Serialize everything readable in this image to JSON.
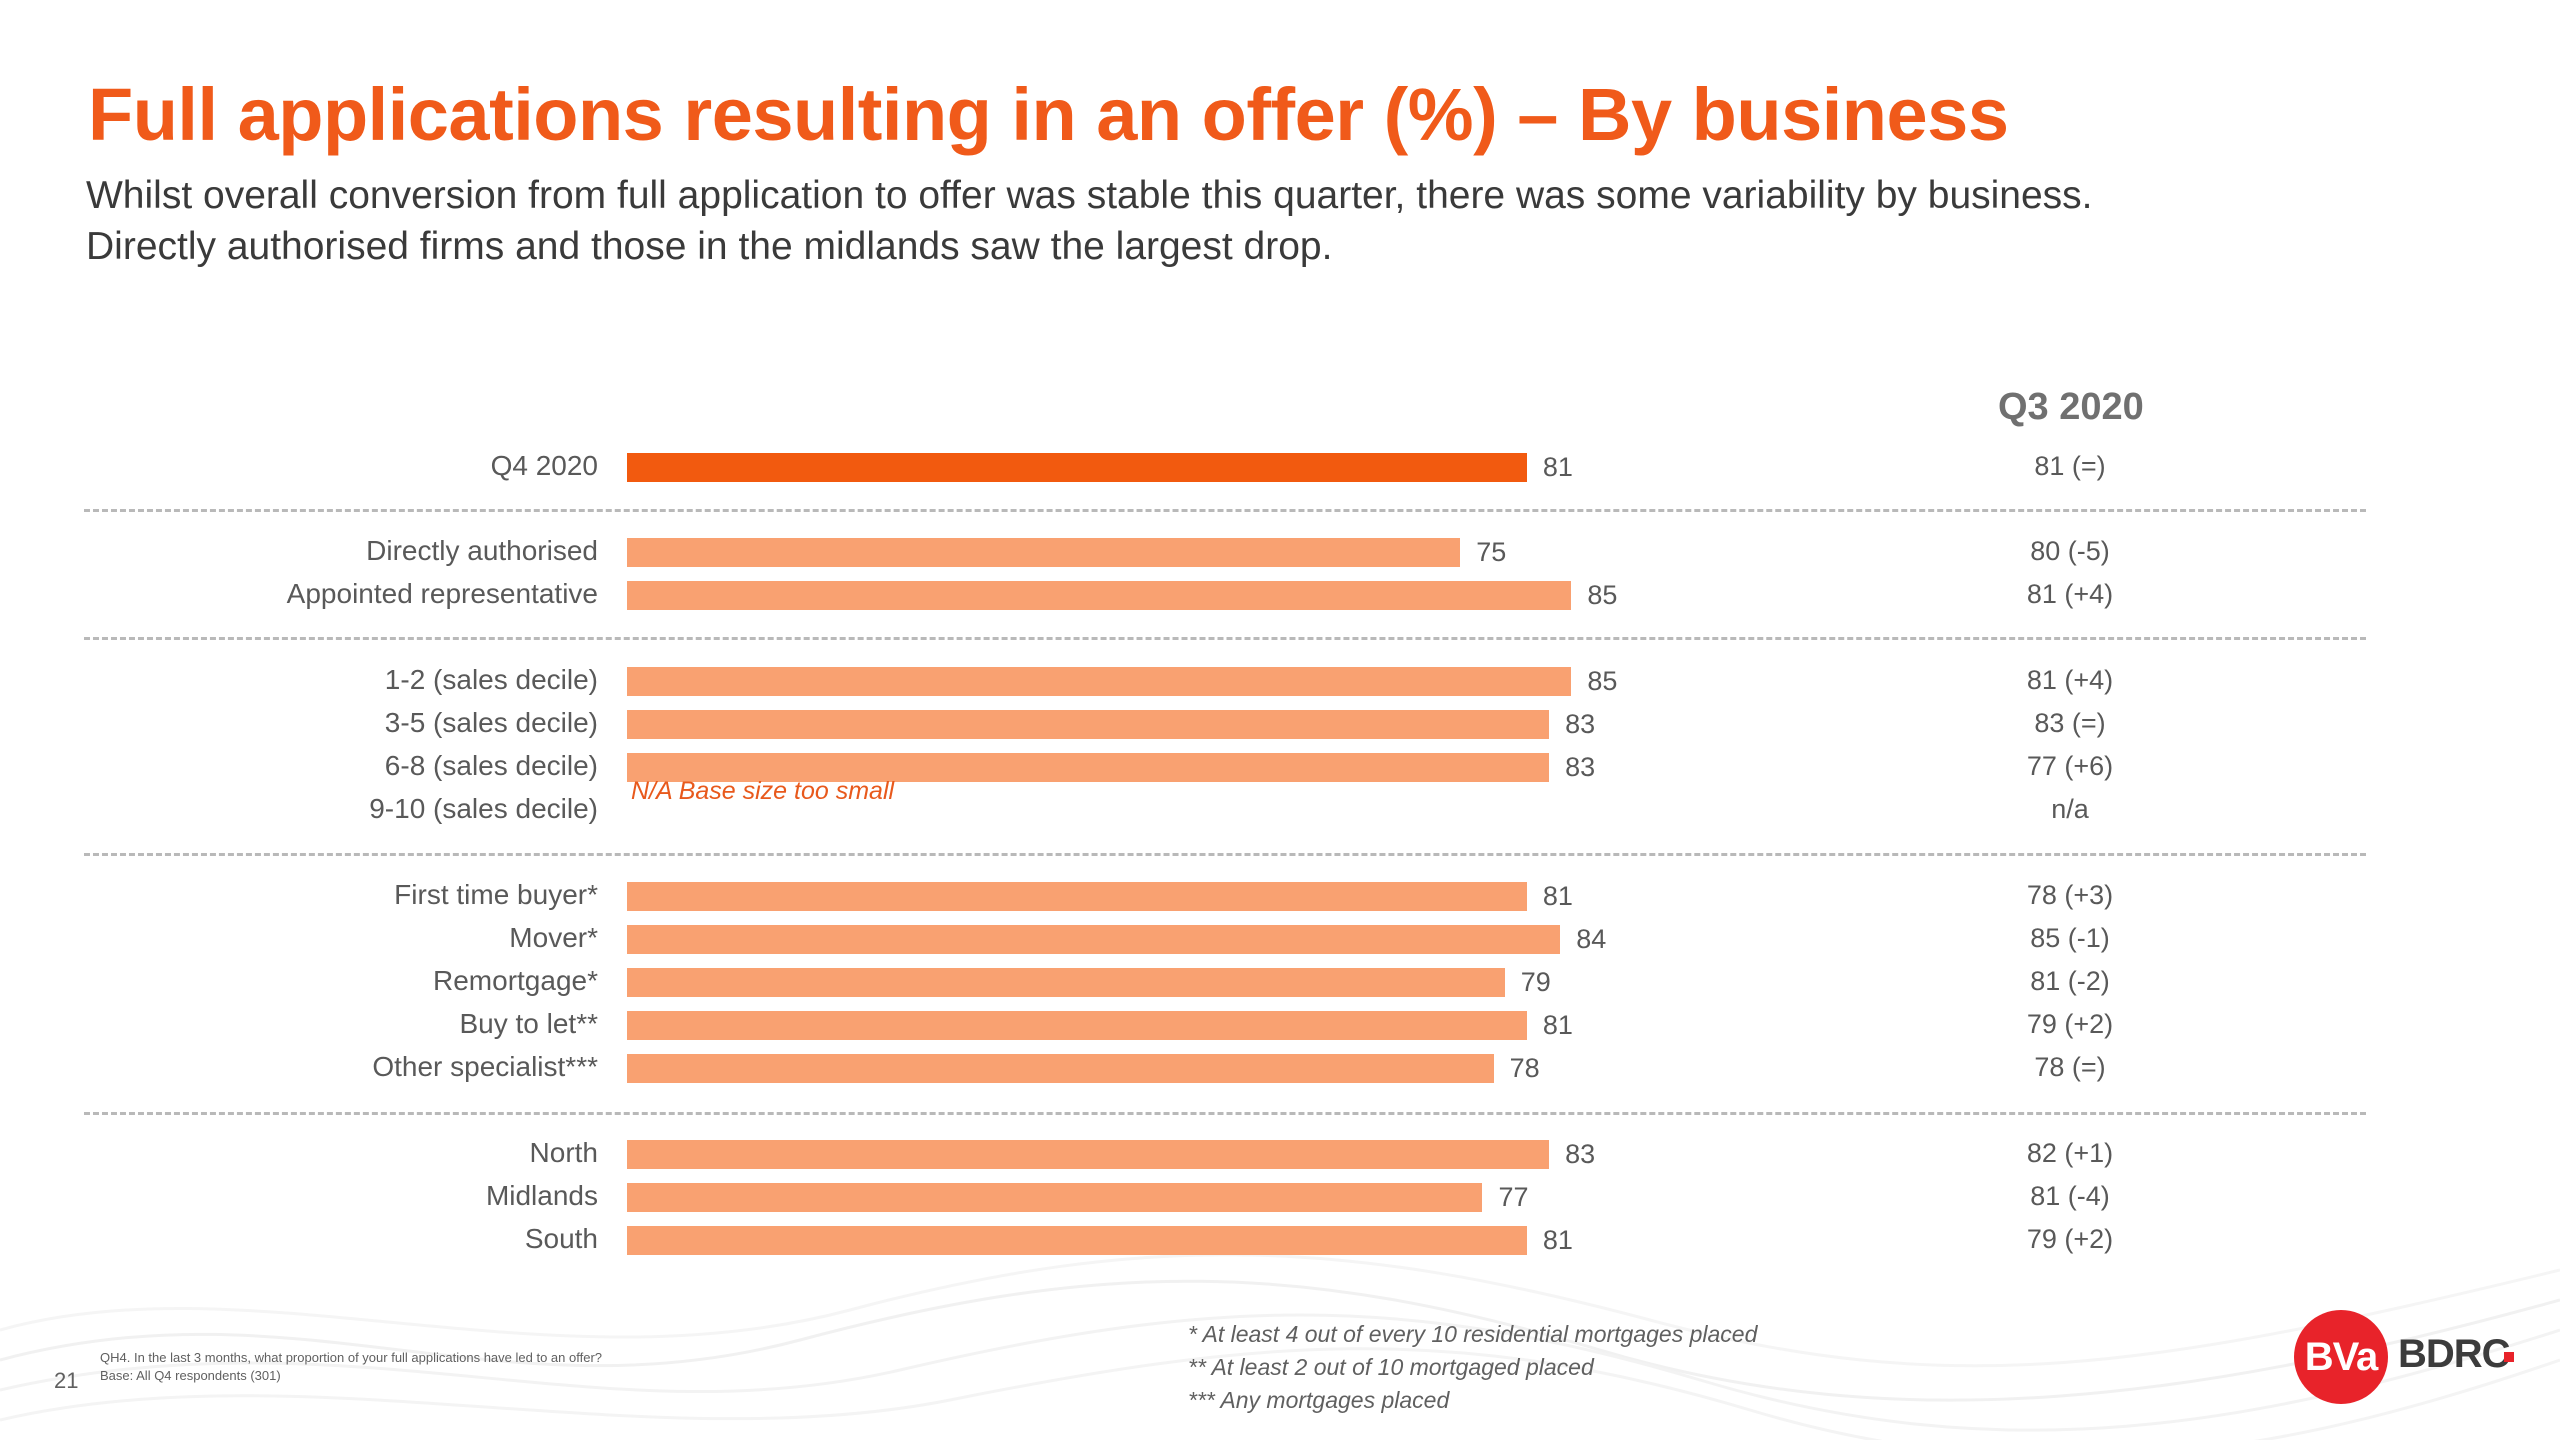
{
  "title": "Full applications resulting in an offer (%) – By business",
  "subtitle_lines": [
    "Whilst overall conversion from full application to offer was stable this quarter, there was some variability by business.",
    "Directly authorised firms and those in the midlands saw the largest drop."
  ],
  "chart_data": {
    "type": "bar",
    "orientation": "horizontal",
    "title": "Full applications resulting in an offer (%) – By business",
    "categories": [
      "Q4 2020",
      "Directly authorised",
      "Appointed representative",
      "1-2 (sales decile)",
      "3-5 (sales decile)",
      "6-8 (sales decile)",
      "9-10 (sales decile)",
      "First time buyer*",
      "Mover*",
      "Remortgage*",
      "Buy to let**",
      "Other specialist***",
      "North",
      "Midlands",
      "South"
    ],
    "series": [
      {
        "name": "Q4 2020",
        "values": [
          81,
          75,
          85,
          85,
          83,
          83,
          null,
          81,
          84,
          79,
          81,
          78,
          83,
          77,
          81
        ]
      }
    ],
    "comparison_header": "Q3 2020",
    "comparison_labels": [
      "81 (=)",
      "80 (-5)",
      "81 (+4)",
      "81 (+4)",
      "83 (=)",
      "77 (+6)",
      "n/a",
      "78 (+3)",
      "85 (-1)",
      "81 (-2)",
      "79 (+2)",
      "78 (=)",
      "82 (+1)",
      "81 (-4)",
      "79 (+2)"
    ],
    "na_note": "N/A Base size too small",
    "groups": [
      [
        0
      ],
      [
        1,
        2
      ],
      [
        3,
        4,
        5,
        6
      ],
      [
        7,
        8,
        9,
        10,
        11
      ],
      [
        12,
        13,
        14
      ]
    ],
    "xlim": [
      0,
      100
    ],
    "grid": false,
    "colors": {
      "highlight": "#f25a0f",
      "bar": "#f9a171",
      "title": "#f05a1a"
    }
  },
  "footer": {
    "page_number": "21",
    "question": "QH4. In the last 3 months, what proportion of your full applications have led to an offer?",
    "base": "Base: All Q4 respondents (301)",
    "notes": [
      "* At least 4 out of every 10 residential mortgages placed",
      "** At least 2 out of 10 mortgaged placed",
      "*** Any mortgages placed"
    ]
  },
  "logo": {
    "left": "BVa",
    "right": "BDRC"
  }
}
